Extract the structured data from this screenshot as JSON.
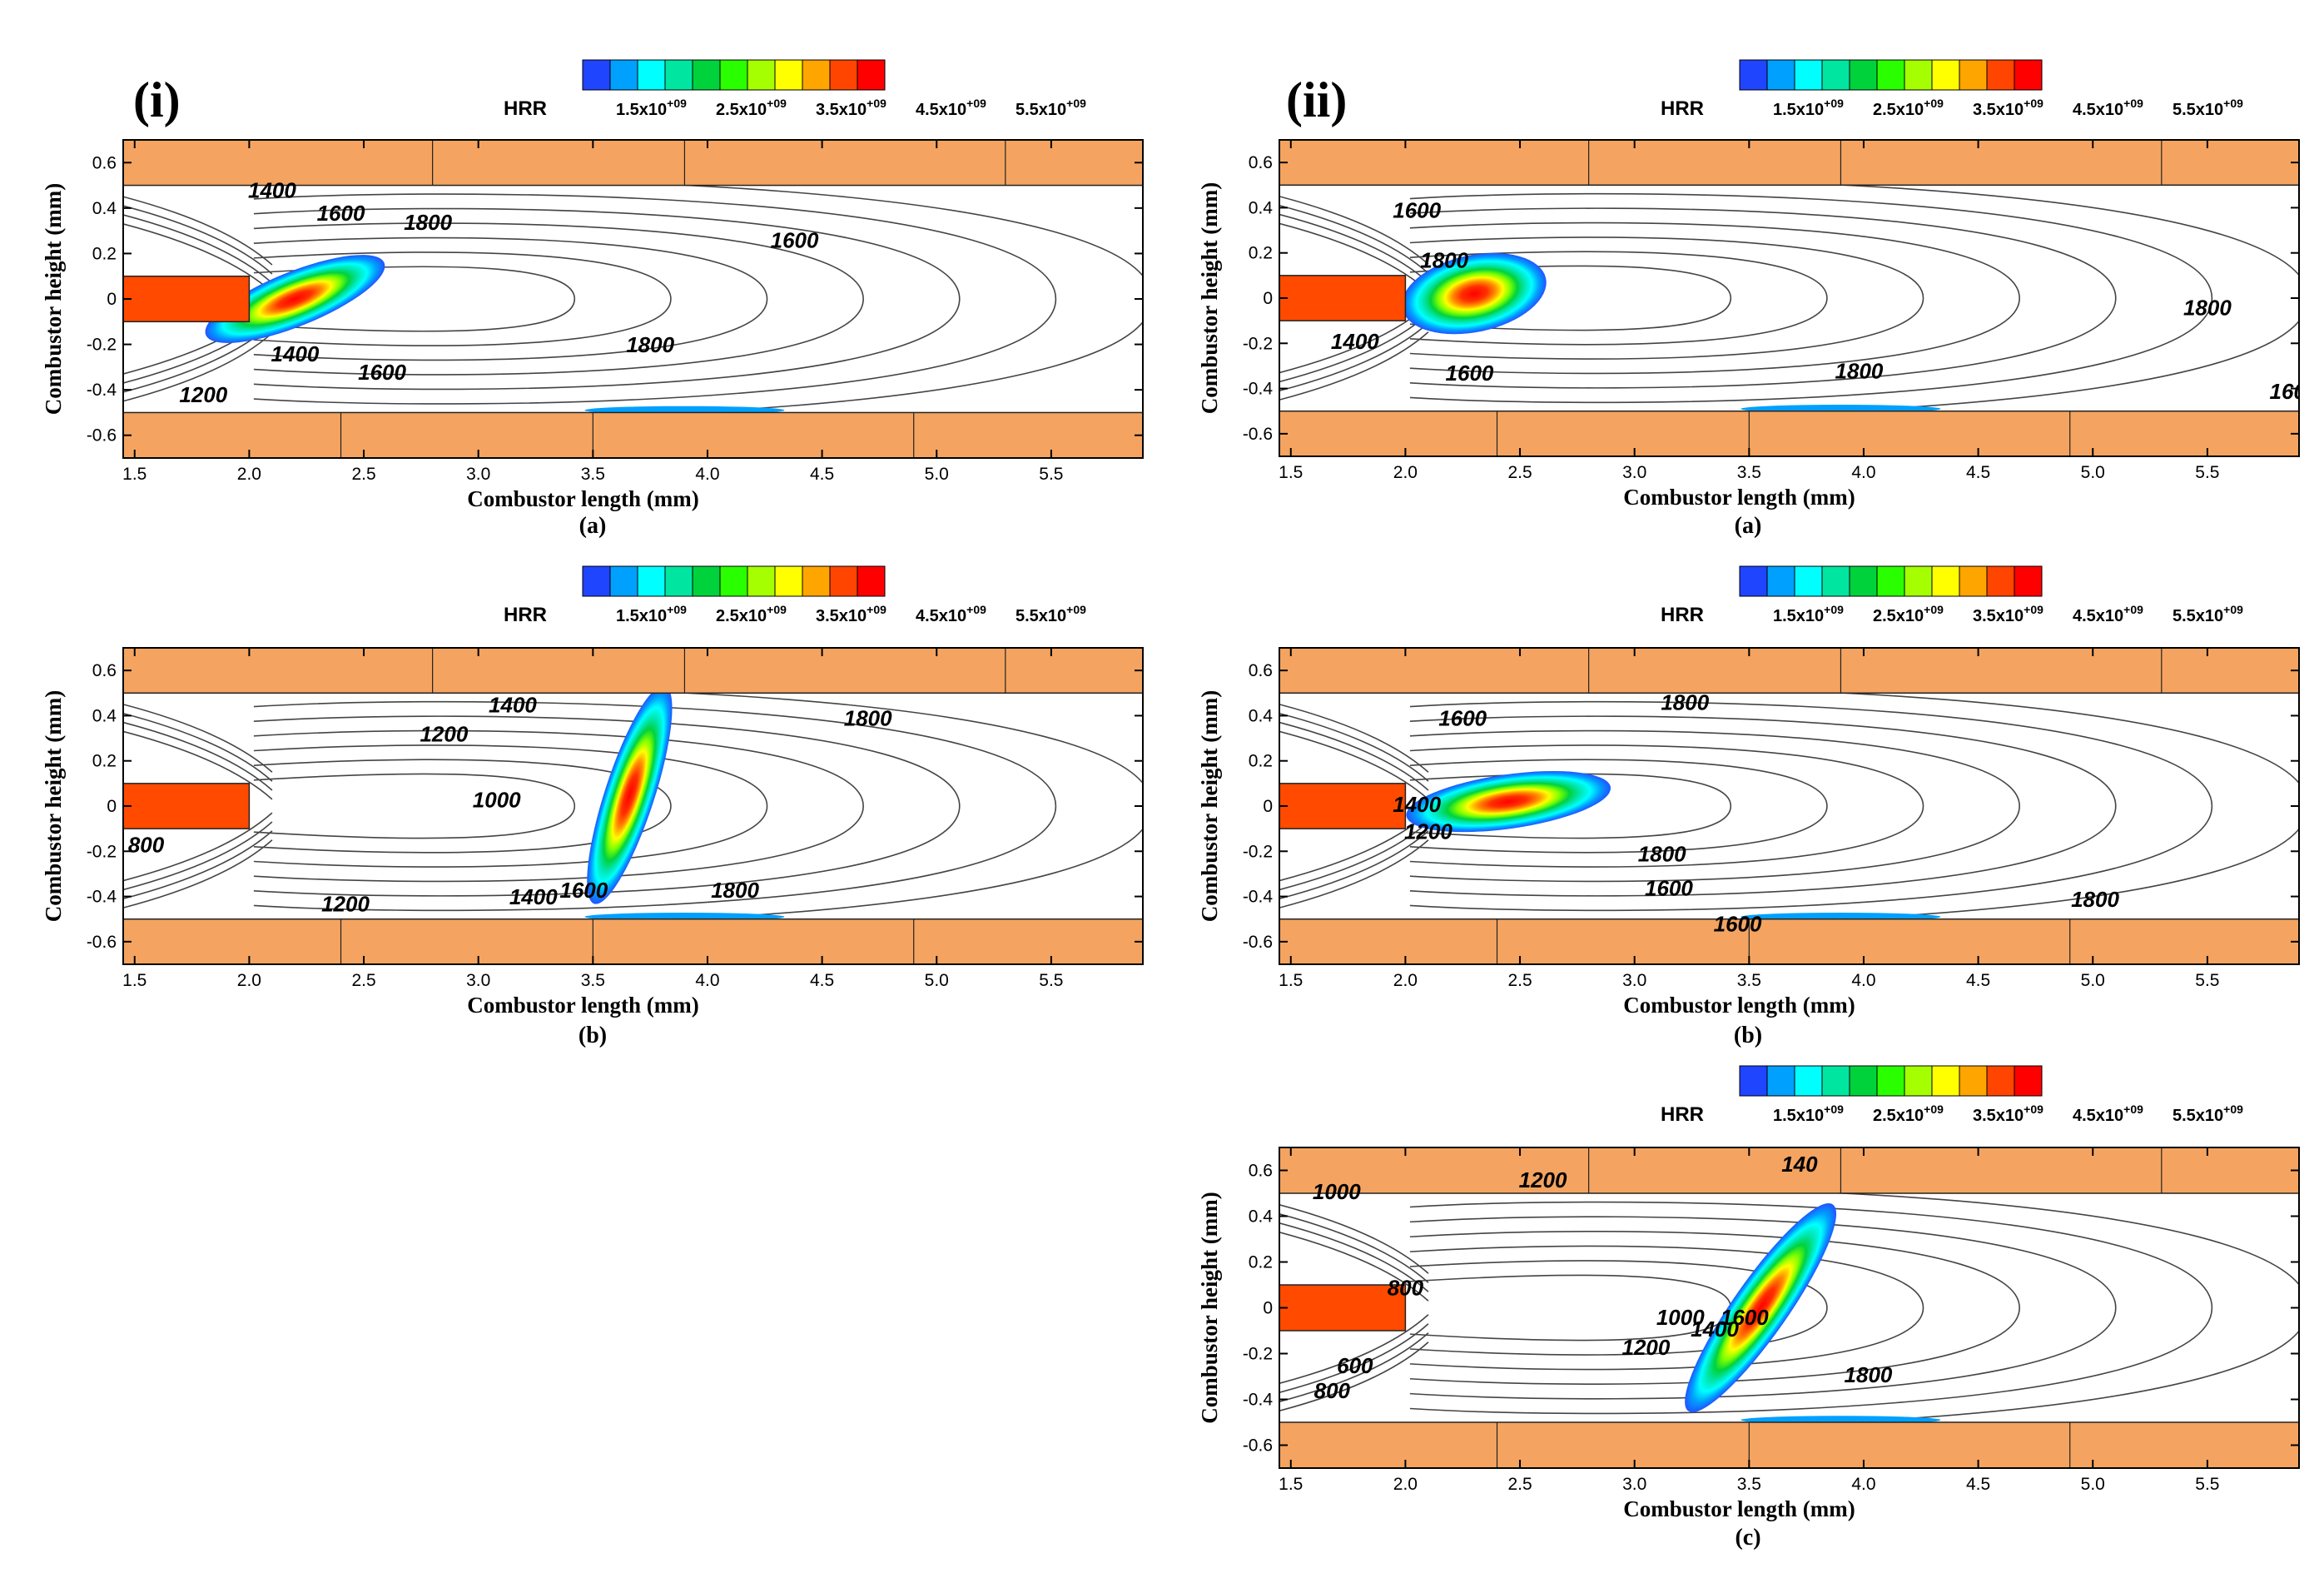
{
  "figure": {
    "panel_group_tags": [
      "(i)",
      "(ii)"
    ],
    "colorbar_title": "HRR",
    "colorbar_colors": [
      "#1f45ff",
      "#00a0ff",
      "#00ffff",
      "#00e6a0",
      "#00d23c",
      "#2aff00",
      "#a6ff00",
      "#ffff00",
      "#ffa500",
      "#ff4500",
      "#ff0000"
    ],
    "colorbar_labels": [
      "1.5x10+09",
      "2.5x10+09",
      "3.5x10+09",
      "4.5x10+09",
      "5.5x10+09"
    ],
    "wall_color": "#f4a460",
    "insert_color": "#ff4a00"
  },
  "chart_data": [
    {
      "id": "i-a",
      "group": "(i)",
      "caption": "(a)",
      "type": "heatmap",
      "xlabel": "Combustor length (mm)",
      "ylabel": "Combustor height (mm)",
      "xlim": [
        1.45,
        5.9
      ],
      "ylim": [
        -0.7,
        0.7
      ],
      "xticks": [
        "1.5",
        "2.0",
        "2.5",
        "3.0",
        "3.5",
        "4.0",
        "4.5",
        "5.0",
        "5.5"
      ],
      "yticks": [
        "0.6",
        "0.4",
        "0.2",
        "0",
        "-0.2",
        "-0.4",
        "-0.6"
      ],
      "field": "HRR",
      "contour_variable": "temperature",
      "contour_labels": [
        {
          "text": "1400",
          "x": 2.1,
          "y": 0.47
        },
        {
          "text": "1600",
          "x": 2.4,
          "y": 0.37
        },
        {
          "text": "1800",
          "x": 2.78,
          "y": 0.33
        },
        {
          "text": "1600",
          "x": 4.38,
          "y": 0.25
        },
        {
          "text": "1800",
          "x": 3.75,
          "y": -0.21
        },
        {
          "text": "1400",
          "x": 2.2,
          "y": -0.25
        },
        {
          "text": "1600",
          "x": 2.58,
          "y": -0.33
        },
        {
          "text": "1200",
          "x": 1.8,
          "y": -0.43
        }
      ],
      "hrr_blobs": [
        {
          "x": 2.2,
          "y": 0.0,
          "rx": 0.42,
          "ry": 0.12,
          "angle": -22,
          "peak": "red"
        }
      ]
    },
    {
      "id": "i-b",
      "group": "(i)",
      "caption": "(b)",
      "type": "heatmap",
      "xlabel": "Combustor length (mm)",
      "ylabel": "Combustor height (mm)",
      "xlim": [
        1.45,
        5.9
      ],
      "ylim": [
        -0.7,
        0.7
      ],
      "xticks": [
        "1.5",
        "2.0",
        "2.5",
        "3.0",
        "3.5",
        "4.0",
        "4.5",
        "5.0",
        "5.5"
      ],
      "yticks": [
        "0.6",
        "0.4",
        "0.2",
        "0",
        "-0.2",
        "-0.4",
        "-0.6"
      ],
      "field": "HRR",
      "contour_variable": "temperature",
      "contour_labels": [
        {
          "text": "1400",
          "x": 3.15,
          "y": 0.44
        },
        {
          "text": "1200",
          "x": 2.85,
          "y": 0.31
        },
        {
          "text": "1800",
          "x": 4.7,
          "y": 0.38
        },
        {
          "text": "1000",
          "x": 3.08,
          "y": 0.02
        },
        {
          "text": "800",
          "x": 1.55,
          "y": -0.18
        },
        {
          "text": "1800",
          "x": 4.12,
          "y": -0.38
        },
        {
          "text": "1200",
          "x": 2.42,
          "y": -0.44
        },
        {
          "text": "1400",
          "x": 3.24,
          "y": -0.41
        },
        {
          "text": "1600",
          "x": 3.46,
          "y": -0.38
        }
      ],
      "hrr_blobs": [
        {
          "x": 3.66,
          "y": 0.05,
          "rx": 0.5,
          "ry": 0.11,
          "angle": -72,
          "peak": "red"
        }
      ]
    },
    {
      "id": "ii-a",
      "group": "(ii)",
      "caption": "(a)",
      "type": "heatmap",
      "xlabel": "Combustor length (mm)",
      "ylabel": "Combustor height (mm)",
      "xlim": [
        1.45,
        5.9
      ],
      "ylim": [
        -0.7,
        0.7
      ],
      "xticks": [
        "1.5",
        "2.0",
        "2.5",
        "3.0",
        "3.5",
        "4.0",
        "4.5",
        "5.0",
        "5.5"
      ],
      "yticks": [
        "0.6",
        "0.4",
        "0.2",
        "0",
        "-0.2",
        "-0.4",
        "-0.6"
      ],
      "field": "HRR",
      "contour_variable": "temperature",
      "contour_labels": [
        {
          "text": "1600",
          "x": 2.05,
          "y": 0.38
        },
        {
          "text": "1800",
          "x": 2.17,
          "y": 0.16
        },
        {
          "text": "1800",
          "x": 5.5,
          "y": -0.05
        },
        {
          "text": "1400",
          "x": 1.78,
          "y": -0.2
        },
        {
          "text": "1800",
          "x": 3.98,
          "y": -0.33
        },
        {
          "text": "1600",
          "x": 2.28,
          "y": -0.34
        },
        {
          "text": "160",
          "x": 5.85,
          "y": -0.42
        }
      ],
      "hrr_blobs": [
        {
          "x": 2.3,
          "y": 0.02,
          "rx": 0.32,
          "ry": 0.17,
          "angle": -12,
          "peak": "red"
        }
      ]
    },
    {
      "id": "ii-b",
      "group": "(ii)",
      "caption": "(b)",
      "type": "heatmap",
      "xlabel": "Combustor length (mm)",
      "ylabel": "Combustor height (mm)",
      "xlim": [
        1.45,
        5.9
      ],
      "ylim": [
        -0.7,
        0.7
      ],
      "xticks": [
        "1.5",
        "2.0",
        "2.5",
        "3.0",
        "3.5",
        "4.0",
        "4.5",
        "5.0",
        "5.5"
      ],
      "yticks": [
        "0.6",
        "0.4",
        "0.2",
        "0",
        "-0.2",
        "-0.4",
        "-0.6"
      ],
      "field": "HRR",
      "contour_variable": "temperature",
      "contour_labels": [
        {
          "text": "1600",
          "x": 2.25,
          "y": 0.38
        },
        {
          "text": "1800",
          "x": 3.22,
          "y": 0.45
        },
        {
          "text": "1400",
          "x": 2.05,
          "y": 0.0
        },
        {
          "text": "1200",
          "x": 2.1,
          "y": -0.12
        },
        {
          "text": "1800",
          "x": 3.12,
          "y": -0.22
        },
        {
          "text": "1600",
          "x": 3.15,
          "y": -0.37
        },
        {
          "text": "1600",
          "x": 3.45,
          "y": -0.53
        },
        {
          "text": "1800",
          "x": 5.01,
          "y": -0.42
        }
      ],
      "hrr_blobs": [
        {
          "x": 2.45,
          "y": 0.02,
          "rx": 0.45,
          "ry": 0.12,
          "angle": -8,
          "peak": "red"
        }
      ]
    },
    {
      "id": "ii-c",
      "group": "(ii)",
      "caption": "(c)",
      "type": "heatmap",
      "xlabel": "Combustor length (mm)",
      "ylabel": "Combustor height (mm)",
      "xlim": [
        1.45,
        5.9
      ],
      "ylim": [
        -0.7,
        0.7
      ],
      "xticks": [
        "1.5",
        "2.0",
        "2.5",
        "3.0",
        "3.5",
        "4.0",
        "4.5",
        "5.0",
        "5.5"
      ],
      "yticks": [
        "0.6",
        "0.4",
        "0.2",
        "0",
        "-0.2",
        "-0.4",
        "-0.6"
      ],
      "field": "HRR",
      "contour_variable": "temperature",
      "contour_labels": [
        {
          "text": "1000",
          "x": 1.7,
          "y": 0.5
        },
        {
          "text": "1200",
          "x": 2.6,
          "y": 0.55
        },
        {
          "text": "140",
          "x": 3.72,
          "y": 0.62
        },
        {
          "text": "800",
          "x": 2.0,
          "y": 0.08
        },
        {
          "text": "600",
          "x": 1.78,
          "y": -0.26
        },
        {
          "text": "800",
          "x": 1.68,
          "y": -0.37
        },
        {
          "text": "1000",
          "x": 3.2,
          "y": -0.05
        },
        {
          "text": "1200",
          "x": 3.05,
          "y": -0.18
        },
        {
          "text": "1400",
          "x": 3.35,
          "y": -0.1
        },
        {
          "text": "1600",
          "x": 3.48,
          "y": -0.05
        },
        {
          "text": "1800",
          "x": 4.02,
          "y": -0.3
        }
      ],
      "hrr_blobs": [
        {
          "x": 3.55,
          "y": 0.0,
          "rx": 0.55,
          "ry": 0.12,
          "angle": -55,
          "peak": "red"
        }
      ]
    }
  ]
}
